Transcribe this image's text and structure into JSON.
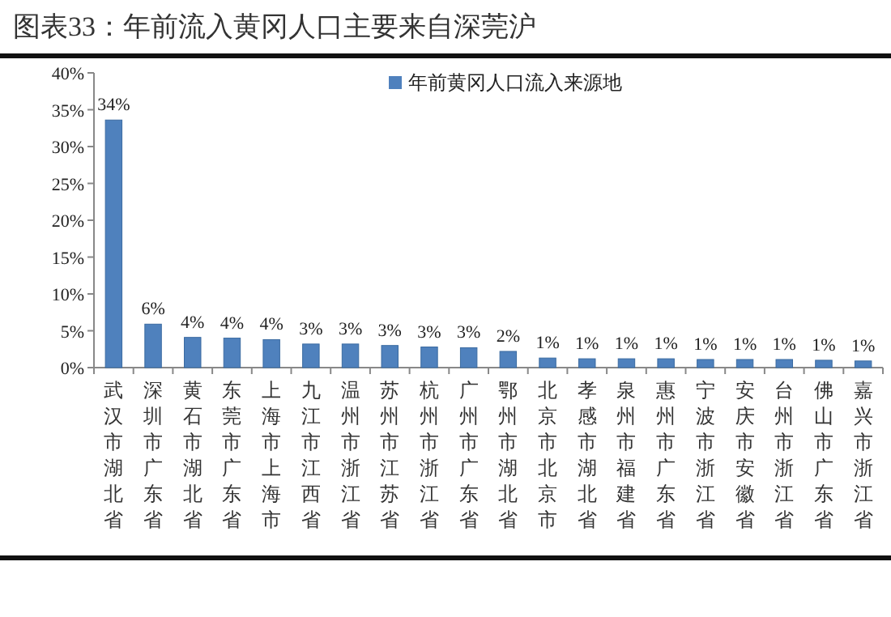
{
  "chart_data": {
    "type": "bar",
    "title": "图表33：年前流入黄冈人口主要来自深莞沪",
    "categories": [
      "武汉市湖北省",
      "深圳市广东省",
      "黄石市湖北省",
      "东莞市广东省",
      "上海市上海市",
      "九江市江西省",
      "温州市浙江省",
      "苏州市江苏省",
      "杭州市浙江省",
      "广州市广东省",
      "鄂州市湖北省",
      "北京市北京市",
      "孝感市湖北省",
      "泉州市福建省",
      "惠州市广东省",
      "宁波市浙江省",
      "安庆市安徽省",
      "台州市浙江省",
      "佛山市广东省",
      "嘉兴市浙江省"
    ],
    "series": [
      {
        "name": "年前黄冈人口流入来源地",
        "color": "#4f81bd",
        "values": [
          33.6,
          5.9,
          4.1,
          4.0,
          3.8,
          3.2,
          3.2,
          3.0,
          2.8,
          2.7,
          2.2,
          1.3,
          1.2,
          1.2,
          1.2,
          1.1,
          1.1,
          1.1,
          1.0,
          0.9
        ],
        "value_labels": [
          "34%",
          "6%",
          "4%",
          "4%",
          "4%",
          "3%",
          "3%",
          "3%",
          "3%",
          "3%",
          "2%",
          "1%",
          "1%",
          "1%",
          "1%",
          "1%",
          "1%",
          "1%",
          "1%",
          "1%"
        ]
      }
    ],
    "ylim": [
      0,
      40
    ],
    "yticks": [
      {
        "value": 0,
        "label": "0%"
      },
      {
        "value": 5,
        "label": "5%"
      },
      {
        "value": 10,
        "label": "10%"
      },
      {
        "value": 15,
        "label": "15%"
      },
      {
        "value": 20,
        "label": "20%"
      },
      {
        "value": 25,
        "label": "25%"
      },
      {
        "value": 30,
        "label": "30%"
      },
      {
        "value": 35,
        "label": "35%"
      },
      {
        "value": 40,
        "label": "40%"
      }
    ],
    "legend": "top right"
  }
}
